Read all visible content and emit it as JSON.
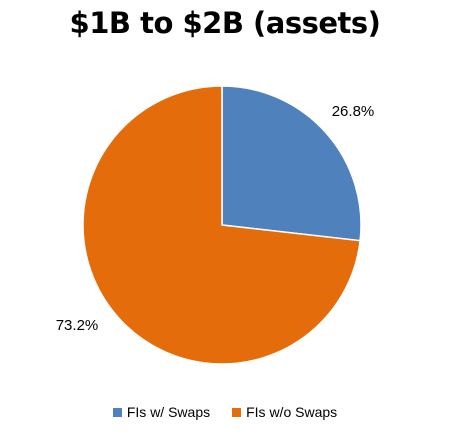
{
  "chart_data": {
    "type": "pie",
    "title": "$1B to $2B (assets)",
    "slices": [
      {
        "name": "FIs w/ Swaps",
        "value": 26.8,
        "label": "26.8%",
        "color": "#4F81BD"
      },
      {
        "name": "FIs w/o Swaps",
        "value": 73.2,
        "label": "73.2%",
        "color": "#E46C0A"
      }
    ],
    "start_angle": "12 o'clock",
    "direction": "clockwise",
    "legend_position": "bottom"
  }
}
